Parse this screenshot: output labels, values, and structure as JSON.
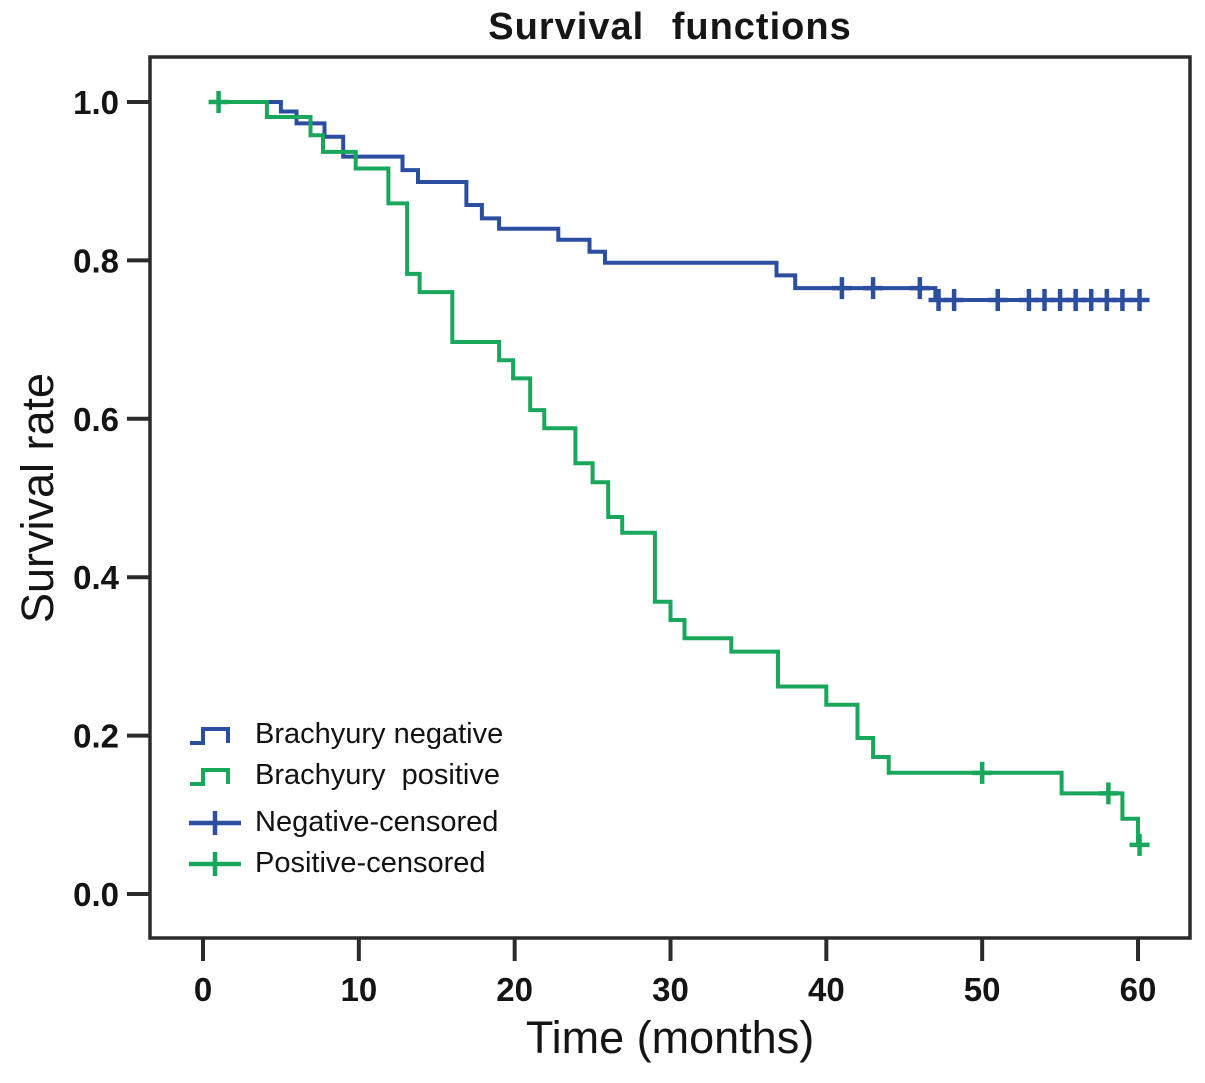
{
  "colors": {
    "negative_blue": "#2B4EA1",
    "positive_green": "#18A75B",
    "frame": "#2b2b2b",
    "tick_text": "#141414"
  },
  "chart_data": {
    "type": "line",
    "subtype": "kaplan_meier_step_survival",
    "title": "Survival functions",
    "xlabel": "Time (months)",
    "ylabel": "Survival rate",
    "x_ticks": [
      0,
      10,
      20,
      30,
      40,
      50,
      60
    ],
    "y_ticks": [
      "0.0",
      "0.2",
      "0.4",
      "0.6",
      "0.8",
      "1.0"
    ],
    "xlim": [
      -3.4,
      63.3
    ],
    "ylim": [
      -0.056,
      1.057
    ],
    "grid": false,
    "legend_position": "inside lower-left",
    "legend": [
      {
        "label": "Brachyury negative",
        "symbol": "step",
        "color": "#2B4EA1"
      },
      {
        "label": "Brachyury  positive",
        "symbol": "step",
        "color": "#18A75B"
      },
      {
        "label": "Negative-censored",
        "symbol": "plus",
        "color": "#2B4EA1"
      },
      {
        "label": "Positive-censored",
        "symbol": "plus",
        "color": "#18A75B"
      }
    ],
    "series": [
      {
        "name": "Brachyury negative",
        "color": "#2B4EA1",
        "end_time": 60.6,
        "steps": [
          [
            0.7,
            1.0
          ],
          [
            5,
            0.988
          ],
          [
            6,
            0.973
          ],
          [
            7.8,
            0.956
          ],
          [
            9,
            0.931
          ],
          [
            12.8,
            0.914
          ],
          [
            13.8,
            0.899
          ],
          [
            16.9,
            0.87
          ],
          [
            17.9,
            0.853
          ],
          [
            19,
            0.84
          ],
          [
            22.8,
            0.826
          ],
          [
            24.8,
            0.811
          ],
          [
            25.8,
            0.797
          ],
          [
            36.8,
            0.781
          ],
          [
            38,
            0.765
          ],
          [
            47,
            0.75
          ]
        ],
        "censored": [
          [
            41,
            0.765
          ],
          [
            43,
            0.765
          ],
          [
            46,
            0.765
          ],
          [
            47.2,
            0.75
          ],
          [
            48.2,
            0.75
          ],
          [
            51,
            0.75
          ],
          [
            53,
            0.75
          ],
          [
            54,
            0.75
          ],
          [
            55,
            0.75
          ],
          [
            56,
            0.75
          ],
          [
            57,
            0.75
          ],
          [
            58,
            0.75
          ],
          [
            59,
            0.75
          ],
          [
            60.1,
            0.75
          ]
        ]
      },
      {
        "name": "Brachyury positive",
        "color": "#18A75B",
        "end_time": 60.7,
        "steps": [
          [
            0.7,
            1.0
          ],
          [
            4.1,
            0.981
          ],
          [
            6.9,
            0.958
          ],
          [
            7.7,
            0.937
          ],
          [
            9.8,
            0.916
          ],
          [
            11.9,
            0.872
          ],
          [
            13.1,
            0.783
          ],
          [
            13.9,
            0.76
          ],
          [
            16,
            0.697
          ],
          [
            19,
            0.674
          ],
          [
            19.9,
            0.651
          ],
          [
            21,
            0.611
          ],
          [
            21.9,
            0.588
          ],
          [
            23.9,
            0.544
          ],
          [
            25,
            0.52
          ],
          [
            26,
            0.476
          ],
          [
            26.9,
            0.456
          ],
          [
            29,
            0.369
          ],
          [
            30,
            0.346
          ],
          [
            30.9,
            0.323
          ],
          [
            33.9,
            0.306
          ],
          [
            36.9,
            0.262
          ],
          [
            40,
            0.239
          ],
          [
            42,
            0.197
          ],
          [
            43,
            0.173
          ],
          [
            44,
            0.153
          ],
          [
            55.1,
            0.127
          ],
          [
            59,
            0.095
          ],
          [
            60,
            0.062
          ]
        ],
        "censored": [
          [
            1,
            1.0
          ],
          [
            50,
            0.153
          ],
          [
            58.1,
            0.127
          ],
          [
            60.1,
            0.062
          ]
        ]
      }
    ]
  }
}
